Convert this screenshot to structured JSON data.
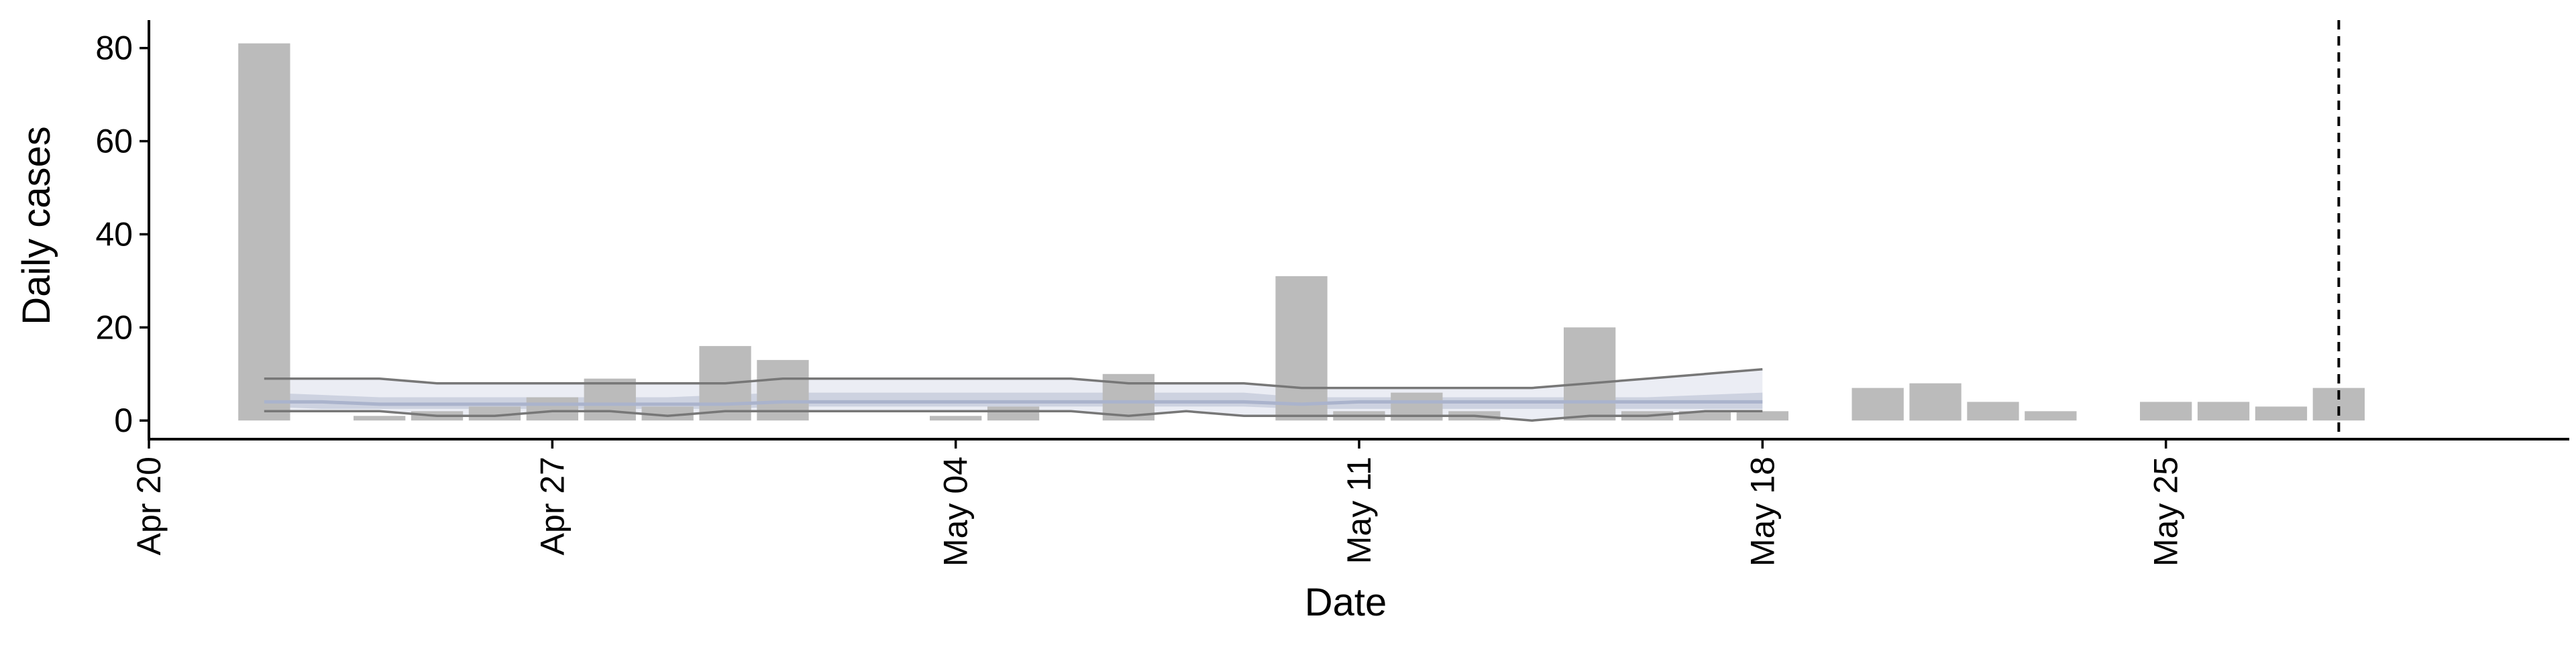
{
  "chart_data": {
    "type": "bar",
    "xlabel": "Date",
    "ylabel": "Daily cases",
    "ylim": [
      -4,
      86
    ],
    "yticks": [
      0,
      20,
      40,
      60,
      80
    ],
    "xlim": [
      "2020-04-20",
      "2020-06-01"
    ],
    "xticks": [
      {
        "date": "2020-04-20",
        "label": "Apr 20"
      },
      {
        "date": "2020-04-27",
        "label": "Apr 27"
      },
      {
        "date": "2020-05-04",
        "label": "May 04"
      },
      {
        "date": "2020-05-11",
        "label": "May 11"
      },
      {
        "date": "2020-05-18",
        "label": "May 18"
      },
      {
        "date": "2020-05-25",
        "label": "May 25"
      }
    ],
    "grid": false,
    "vline_date": "2020-05-28",
    "colors": {
      "bar": "#bbbbbb",
      "band_outer": "#e8eaf2",
      "band_inner": "#c5cadb",
      "median_line": "#aab3cc",
      "bound_line": "#777777",
      "vline": "#000000"
    },
    "bars": [
      {
        "date": "2020-04-22",
        "value": 81
      },
      {
        "date": "2020-04-23",
        "value": 0
      },
      {
        "date": "2020-04-24",
        "value": 1
      },
      {
        "date": "2020-04-25",
        "value": 2
      },
      {
        "date": "2020-04-26",
        "value": 3
      },
      {
        "date": "2020-04-27",
        "value": 5
      },
      {
        "date": "2020-04-28",
        "value": 9
      },
      {
        "date": "2020-04-29",
        "value": 3
      },
      {
        "date": "2020-04-30",
        "value": 16
      },
      {
        "date": "2020-05-01",
        "value": 13
      },
      {
        "date": "2020-05-02",
        "value": 0
      },
      {
        "date": "2020-05-03",
        "value": 0
      },
      {
        "date": "2020-05-04",
        "value": 1
      },
      {
        "date": "2020-05-05",
        "value": 3
      },
      {
        "date": "2020-05-06",
        "value": 0
      },
      {
        "date": "2020-05-07",
        "value": 10
      },
      {
        "date": "2020-05-08",
        "value": 0
      },
      {
        "date": "2020-05-09",
        "value": 0
      },
      {
        "date": "2020-05-10",
        "value": 31
      },
      {
        "date": "2020-05-11",
        "value": 2
      },
      {
        "date": "2020-05-12",
        "value": 6
      },
      {
        "date": "2020-05-13",
        "value": 2
      },
      {
        "date": "2020-05-14",
        "value": 0
      },
      {
        "date": "2020-05-15",
        "value": 20
      },
      {
        "date": "2020-05-16",
        "value": 2
      },
      {
        "date": "2020-05-17",
        "value": 2
      },
      {
        "date": "2020-05-18",
        "value": 2
      },
      {
        "date": "2020-05-19",
        "value": 0
      },
      {
        "date": "2020-05-20",
        "value": 7
      },
      {
        "date": "2020-05-21",
        "value": 8
      },
      {
        "date": "2020-05-22",
        "value": 4
      },
      {
        "date": "2020-05-23",
        "value": 2
      },
      {
        "date": "2020-05-24",
        "value": 0
      },
      {
        "date": "2020-05-25",
        "value": 4
      },
      {
        "date": "2020-05-26",
        "value": 4
      },
      {
        "date": "2020-05-27",
        "value": 3
      },
      {
        "date": "2020-05-28",
        "value": 7
      }
    ],
    "estimate": {
      "dates": [
        "2020-04-22",
        "2020-04-23",
        "2020-04-24",
        "2020-04-25",
        "2020-04-26",
        "2020-04-27",
        "2020-04-28",
        "2020-04-29",
        "2020-04-30",
        "2020-05-01",
        "2020-05-02",
        "2020-05-03",
        "2020-05-04",
        "2020-05-05",
        "2020-05-06",
        "2020-05-07",
        "2020-05-08",
        "2020-05-09",
        "2020-05-10",
        "2020-05-11",
        "2020-05-12",
        "2020-05-13",
        "2020-05-14",
        "2020-05-15",
        "2020-05-16",
        "2020-05-17",
        "2020-05-18"
      ],
      "upper_outer": [
        9,
        9,
        9,
        8,
        8,
        8,
        8,
        8,
        8,
        9,
        9,
        9,
        9,
        9,
        9,
        8,
        8,
        8,
        7,
        7,
        7,
        7,
        7,
        8,
        9,
        10,
        11
      ],
      "upper_inner": [
        6,
        5.5,
        5,
        5,
        5,
        5,
        5,
        5,
        5.5,
        6,
        6,
        6,
        6,
        6,
        6,
        6,
        6,
        6,
        5,
        5,
        5,
        5,
        5,
        5,
        5,
        5.5,
        6
      ],
      "median": [
        4,
        4,
        3.5,
        3.5,
        3.5,
        3.5,
        3.5,
        3.5,
        3.5,
        4,
        4,
        4,
        4,
        4,
        4,
        4,
        4,
        4,
        3.5,
        4,
        4,
        4,
        4,
        4,
        4,
        4,
        4
      ],
      "lower_inner": [
        3,
        2.5,
        2.5,
        2.5,
        2.5,
        2.5,
        2.5,
        2.5,
        2.5,
        3,
        3,
        3,
        3,
        3,
        3,
        3,
        3,
        3,
        2.5,
        2.5,
        2.5,
        2.5,
        2.5,
        2.5,
        2.5,
        2.5,
        2.5
      ],
      "lower_outer": [
        2,
        2,
        2,
        1,
        1,
        2,
        2,
        1,
        2,
        2,
        2,
        2,
        2,
        2,
        2,
        1,
        2,
        1,
        1,
        1,
        1,
        1,
        0,
        1,
        1,
        2,
        2
      ]
    }
  }
}
